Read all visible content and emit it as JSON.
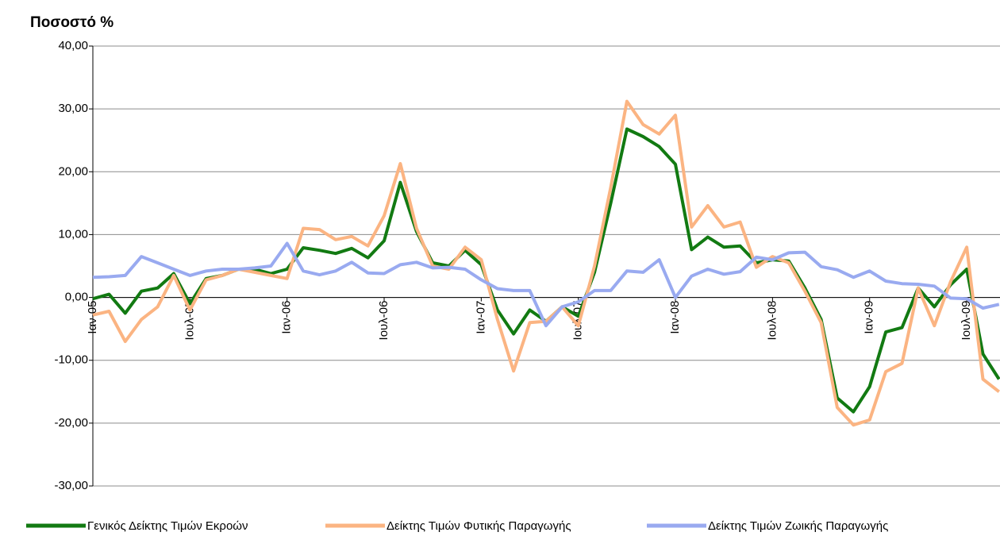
{
  "chart_data": {
    "type": "line",
    "title": "Ποσοστό %",
    "categories": [
      "Ιαν-05",
      null,
      null,
      null,
      null,
      null,
      "Ιουλ-05",
      null,
      null,
      null,
      null,
      null,
      "Ιαν-06",
      null,
      null,
      null,
      null,
      null,
      "Ιουλ-06",
      null,
      null,
      null,
      null,
      null,
      "Ιαν-07",
      null,
      null,
      null,
      null,
      null,
      "Ιουλ-07",
      null,
      null,
      null,
      null,
      null,
      "Ιαν-08",
      null,
      null,
      null,
      null,
      null,
      "Ιουλ-08",
      null,
      null,
      null,
      null,
      null,
      "Ιαν-09",
      null,
      null,
      null,
      null,
      null,
      "Ιουλ-09",
      null,
      null
    ],
    "series": [
      {
        "name": "Γενικός Δείκτης Τιμών Εκροών",
        "color": "#127a12",
        "values": [
          -0.2,
          0.5,
          -2.5,
          1,
          1.5,
          3.8,
          -1,
          3,
          3.5,
          4.5,
          4.5,
          3.8,
          4.5,
          7.9,
          7.5,
          7,
          7.8,
          6.3,
          9,
          18.3,
          10.5,
          5.5,
          5,
          7.5,
          5.2,
          -2,
          -5.8,
          -2,
          -3.8,
          -1.5,
          -3,
          4,
          15,
          26.8,
          25.6,
          24,
          21.2,
          7.6,
          9.6,
          8,
          8.2,
          5.5,
          6,
          5.8,
          1.5,
          -3.5,
          -16,
          -18.2,
          -14.2,
          -5.5,
          -4.8,
          1.5,
          -1.5,
          2,
          4.5,
          -9,
          -13
        ]
      },
      {
        "name": "Δείκτης Τιμών Φυτικής Παραγωγής",
        "color": "#fbb482",
        "values": [
          -2.8,
          -2.2,
          -7,
          -3.5,
          -1.5,
          3.5,
          -2,
          2.8,
          3.5,
          4.5,
          4,
          3.5,
          3,
          11,
          10.8,
          9.2,
          9.7,
          8.2,
          13,
          21.3,
          11,
          5,
          4.5,
          8,
          6,
          -3.5,
          -11.7,
          -4,
          -3.8,
          -1.5,
          -4.5,
          5,
          17.5,
          31.2,
          27.5,
          26,
          29,
          11.2,
          14.6,
          11.2,
          12,
          4.8,
          6.5,
          5.5,
          1,
          -4,
          -17.5,
          -20.3,
          -19.5,
          -11.8,
          -10.5,
          1.5,
          -4.5,
          2.5,
          8,
          -13,
          -15
        ]
      },
      {
        "name": "Δείκτης Τιμών Ζωικής Παραγωγής",
        "color": "#99aaf0",
        "values": [
          3.2,
          3.3,
          3.5,
          6.5,
          5.5,
          4.5,
          3.5,
          4.2,
          4.5,
          4.5,
          4.7,
          5,
          8.6,
          4.2,
          3.6,
          4.2,
          5.6,
          3.9,
          3.8,
          5.2,
          5.6,
          4.7,
          4.8,
          4.5,
          2.8,
          1.4,
          1.1,
          1.1,
          -4.5,
          -1.5,
          -0.7,
          1.1,
          1.1,
          4.2,
          4,
          6,
          0,
          3.4,
          4.5,
          3.7,
          4.1,
          6.4,
          6,
          7.1,
          7.2,
          4.9,
          4.4,
          3.2,
          4.2,
          2.6,
          2.2,
          2.1,
          1.8,
          -0.1,
          -0.2,
          -1.7,
          -1.1
        ]
      }
    ],
    "ylim": [
      -30,
      40
    ],
    "yticks": [
      {
        "value": -30,
        "label": "-30,00"
      },
      {
        "value": -20,
        "label": "-20,00"
      },
      {
        "value": -10,
        "label": "-10,00"
      },
      {
        "value": 0,
        "label": "0,00"
      },
      {
        "value": 10,
        "label": "10,00"
      },
      {
        "value": 20,
        "label": "20,00"
      },
      {
        "value": 30,
        "label": "30,00"
      },
      {
        "value": 40,
        "label": "40,00"
      }
    ],
    "grid": true
  }
}
